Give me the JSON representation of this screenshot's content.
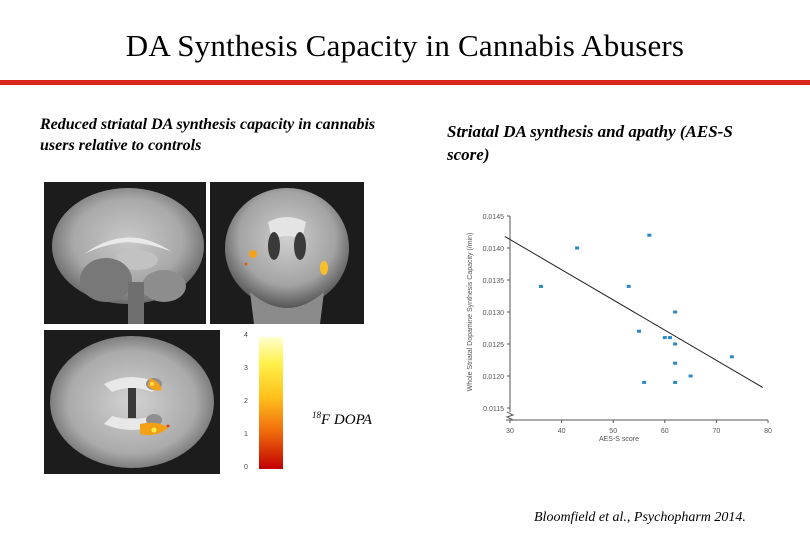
{
  "slide": {
    "title": "DA Synthesis Capacity in Cannabis Abusers",
    "left_caption": "Reduced striatal DA synthesis capacity in cannabis users relative to controls",
    "right_caption": "Striatal DA synthesis and apathy (AES-S score)",
    "tracer_superscript": "18",
    "tracer_label": "F DOPA",
    "citation": "Bloomfield et al., Psychopharm 2014.",
    "accent_color": "#d9261c"
  },
  "colorbar": {
    "ticks": [
      "4",
      "3",
      "2",
      "1",
      "0"
    ]
  },
  "chart_data": {
    "type": "scatter",
    "xlabel": "AES-S score",
    "ylabel": "Whole Striatal Dopamine Synthesis Capacity (/min)",
    "xlim": [
      30,
      80
    ],
    "ylim": [
      0.0115,
      0.0145
    ],
    "x_ticks": [
      "30",
      "40",
      "50",
      "60",
      "70",
      "80"
    ],
    "y_ticks": [
      "0.0115",
      "0.0120",
      "0.0125",
      "0.0130",
      "0.0135",
      "0.0140",
      "0.0145"
    ],
    "points": [
      {
        "x": 36,
        "y": 0.0134
      },
      {
        "x": 43,
        "y": 0.014
      },
      {
        "x": 53,
        "y": 0.0134
      },
      {
        "x": 55,
        "y": 0.0127
      },
      {
        "x": 56,
        "y": 0.0119
      },
      {
        "x": 57,
        "y": 0.0142
      },
      {
        "x": 60,
        "y": 0.0126
      },
      {
        "x": 61,
        "y": 0.0126
      },
      {
        "x": 62,
        "y": 0.013
      },
      {
        "x": 62,
        "y": 0.0122
      },
      {
        "x": 62,
        "y": 0.0119
      },
      {
        "x": 62,
        "y": 0.0125
      },
      {
        "x": 65,
        "y": 0.012
      },
      {
        "x": 73,
        "y": 0.0123
      }
    ],
    "trend": {
      "x": [
        29,
        79
      ],
      "y": [
        0.01418,
        0.01182
      ]
    },
    "grid": false,
    "marker_color": "#2a88c4"
  }
}
